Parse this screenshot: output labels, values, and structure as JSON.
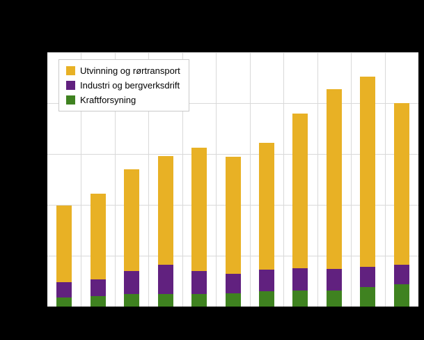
{
  "figure": {
    "background_color": "#000000",
    "plot_background_color": "#ffffff",
    "gridline_color": "#d9d9d9"
  },
  "chart_data": {
    "type": "bar",
    "stacked": true,
    "title": "",
    "xlabel": "",
    "ylabel": "",
    "categories": [
      "",
      "",
      "",
      "",
      "",
      "",
      "",
      "",
      "",
      "",
      ""
    ],
    "series": [
      {
        "name": "Utvinning og rørtransport",
        "color": "#e8b125",
        "values": [
          75,
          84,
          100,
          107,
          121,
          115,
          125,
          152,
          177,
          187,
          159
        ]
      },
      {
        "name": "Industri og bergverksdrift",
        "color": "#61217f",
        "values": [
          15,
          17,
          23,
          29,
          23,
          19,
          21,
          22,
          21,
          20,
          19
        ]
      },
      {
        "name": "Kraftforsyning",
        "color": "#3f8220",
        "values": [
          9,
          10,
          12,
          12,
          12,
          13,
          15,
          16,
          16,
          19,
          22
        ]
      }
    ],
    "ylim": [
      0,
      250
    ],
    "y_grid_step": 50,
    "grid": true,
    "legend_position": "top-left",
    "axis_tick_labels_visible": false
  }
}
